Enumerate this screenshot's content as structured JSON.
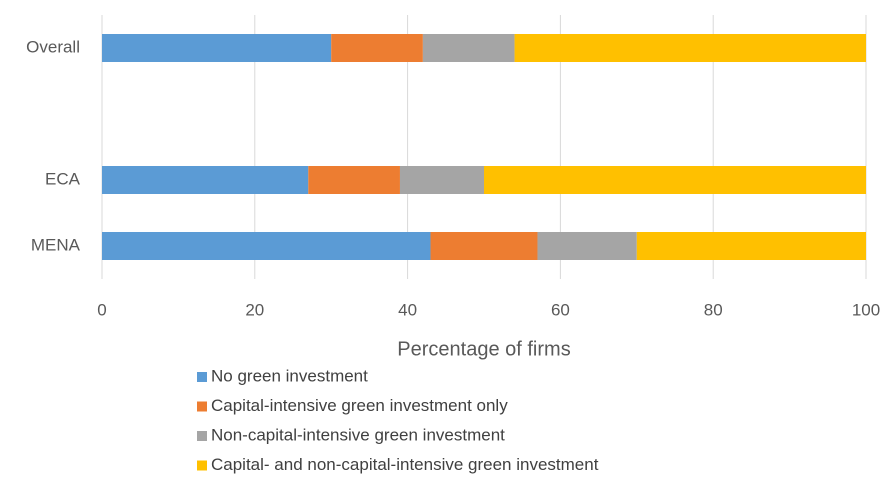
{
  "chart_data": {
    "type": "stacked_barh",
    "x_label": "Percentage of firms",
    "categories": [
      "Overall",
      null,
      "ECA",
      "MENA"
    ],
    "series": [
      {
        "name": "No green investment",
        "color": "#5b9bd5",
        "values": [
          30,
          null,
          27,
          43
        ]
      },
      {
        "name": "Capital-intensive green investment only",
        "color": "#ed7d31",
        "values": [
          12,
          null,
          12,
          14
        ]
      },
      {
        "name": "Non-capital-intensive green investment",
        "color": "#a5a5a5",
        "values": [
          12,
          null,
          11,
          13
        ]
      },
      {
        "name": "Capital- and non-capital-intensive green investment",
        "color": "#ffc000",
        "values": [
          46,
          null,
          50,
          30
        ]
      }
    ],
    "xlim": [
      0,
      100
    ],
    "xticks": [
      0,
      20,
      40,
      60,
      80,
      100
    ],
    "grid": true
  }
}
